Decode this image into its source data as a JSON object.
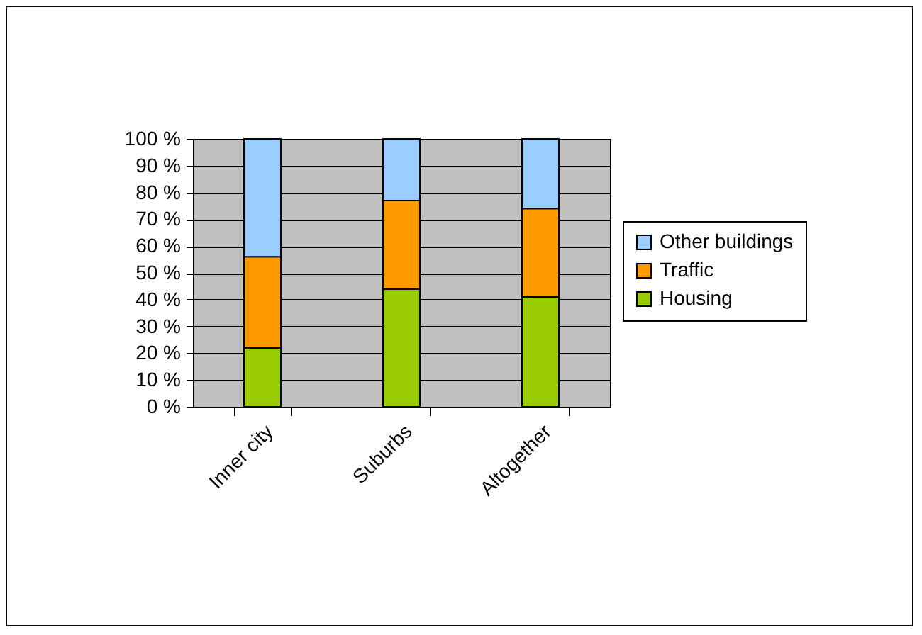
{
  "chart_data": {
    "type": "bar",
    "stacked": true,
    "categories": [
      "Inner city",
      "Suburbs",
      "Altogether"
    ],
    "series": [
      {
        "name": "Housing",
        "color": "#99cc00",
        "values": [
          22,
          44,
          41
        ]
      },
      {
        "name": "Traffic",
        "color": "#ff9900",
        "values": [
          34,
          33,
          33
        ]
      },
      {
        "name": "Other buildings",
        "color": "#99ccff",
        "values": [
          44,
          23,
          26
        ]
      }
    ],
    "ylim": [
      0,
      100
    ],
    "yticks": [
      {
        "value": 0,
        "label": "0 %"
      },
      {
        "value": 10,
        "label": "10 %"
      },
      {
        "value": 20,
        "label": "20 %"
      },
      {
        "value": 30,
        "label": "30 %"
      },
      {
        "value": 40,
        "label": "40 %"
      },
      {
        "value": 50,
        "label": "50 %"
      },
      {
        "value": 60,
        "label": "60 %"
      },
      {
        "value": 70,
        "label": "70 %"
      },
      {
        "value": 80,
        "label": "80 %"
      },
      {
        "value": 90,
        "label": "90 %"
      },
      {
        "value": 100,
        "label": "100 %"
      }
    ],
    "grid": "y",
    "legend": "right"
  }
}
